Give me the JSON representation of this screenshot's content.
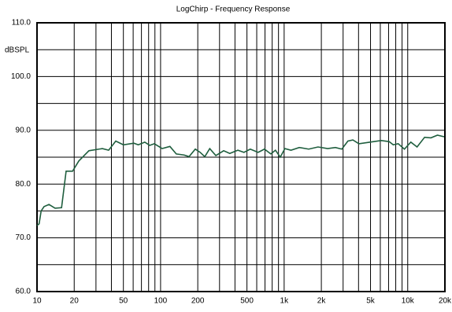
{
  "chart_data": {
    "type": "line",
    "title": "LogChirp - Frequency Response",
    "y_label": "dBSPL",
    "x": [
      10,
      10.4,
      10.8,
      11.4,
      12.5,
      14,
      15.8,
      17.2,
      19.4,
      21.8,
      26.3,
      33.8,
      38,
      43.4,
      50,
      60.8,
      66,
      74.5,
      81.6,
      89,
      103,
      119,
      134,
      155,
      170,
      191,
      209,
      228,
      250,
      280,
      324,
      363,
      422,
      473,
      532,
      616,
      693,
      780,
      850,
      930,
      1014,
      1136,
      1325,
      1580,
      1880,
      2250,
      2600,
      2930,
      3280,
      3600,
      4030,
      4980,
      6100,
      7070,
      7640,
      8380,
      9400,
      10600,
      11900,
      13700,
      15400,
      17400,
      19700
    ],
    "series": [
      {
        "color": "#1f5e3e",
        "values": [
          72.3,
          72.6,
          75,
          75.8,
          76.2,
          75.5,
          75.6,
          82.4,
          82.4,
          84.3,
          86.2,
          86.6,
          86.3,
          88,
          87.3,
          87.6,
          87.3,
          87.8,
          87.2,
          87.5,
          86.6,
          87,
          85.6,
          85.4,
          85.1,
          86.5,
          85.9,
          85.1,
          86.6,
          85.3,
          86.2,
          85.7,
          86.3,
          85.9,
          86.5,
          85.9,
          86.5,
          85.6,
          86.3,
          85,
          86.6,
          86.3,
          86.8,
          86.5,
          86.9,
          86.6,
          86.8,
          86.5,
          88,
          88.2,
          87.5,
          87.8,
          88.1,
          87.9,
          87.3,
          87.5,
          86.5,
          87.8,
          86.9,
          88.7,
          88.6,
          89.1,
          88.8
        ]
      }
    ],
    "xscale": "log",
    "xlim": [
      10,
      20000
    ],
    "xticks": [
      10,
      20,
      50,
      100,
      200,
      500,
      {
        "value": 1000,
        "label": "1k"
      },
      {
        "value": 2000,
        "label": "2k"
      },
      {
        "value": 5000,
        "label": "5k"
      },
      {
        "value": 10000,
        "label": "10k"
      },
      {
        "value": 20000,
        "label": "20k"
      }
    ],
    "xgrid": [
      20,
      30,
      40,
      50,
      60,
      70,
      80,
      90,
      100,
      200,
      300,
      400,
      500,
      600,
      700,
      800,
      900,
      1000,
      2000,
      3000,
      4000,
      5000,
      6000,
      7000,
      8000,
      9000,
      10000
    ],
    "ylim": [
      60,
      110
    ],
    "yticks": [
      {
        "value": 60,
        "label": "60.0"
      },
      {
        "value": 70,
        "label": "70.0"
      },
      {
        "value": 80,
        "label": "80.0"
      },
      {
        "value": 90,
        "label": "90.0"
      },
      {
        "value": 100,
        "label": "100.0"
      },
      {
        "value": 110,
        "label": "110.0"
      }
    ],
    "ygrid": [
      65,
      70,
      75,
      80,
      85,
      90,
      95,
      100,
      105
    ]
  }
}
